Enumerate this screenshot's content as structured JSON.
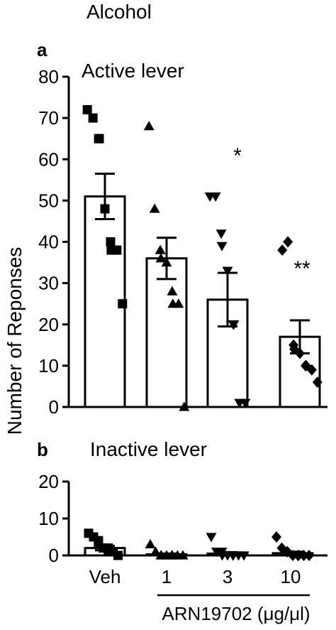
{
  "figure": {
    "heading": "Alcohol",
    "group_label": "ARN19702 (μg/μl)",
    "shared_ylabel": "Number of Reponses"
  },
  "chart_data": [
    {
      "type": "bar",
      "panel_letter": "a",
      "title": "Active lever",
      "ylabel": "Number of Reponses",
      "ylim": [
        0,
        80
      ],
      "yticks": [
        0,
        10,
        20,
        30,
        40,
        50,
        60,
        70,
        80
      ],
      "categories": [
        "Veh",
        "1",
        "3",
        "10"
      ],
      "show_category_labels": false,
      "values": [
        51,
        36,
        26,
        17
      ],
      "sem": [
        5.5,
        5,
        6.5,
        4
      ],
      "significance": [
        "",
        "",
        "*",
        "**"
      ],
      "points": [
        [
          72,
          70,
          65,
          65,
          48,
          40,
          38,
          38,
          25
        ],
        [
          68,
          48,
          38,
          36,
          35,
          28,
          25,
          25,
          0
        ],
        [
          51,
          51,
          42,
          39,
          33,
          20,
          20,
          1,
          1
        ],
        [
          38,
          40,
          15,
          14,
          13,
          10,
          10,
          9,
          6
        ]
      ],
      "markers": [
        "square",
        "triangle-up",
        "triangle-down",
        "diamond"
      ],
      "bar_fill": "#ffffff",
      "bar_stroke": "#000000"
    },
    {
      "type": "bar",
      "panel_letter": "b",
      "title": "Inactive lever",
      "ylim": [
        0,
        20
      ],
      "yticks": [
        0,
        10,
        20
      ],
      "categories": [
        "Veh",
        "1",
        "3",
        "10"
      ],
      "show_category_labels": true,
      "values": [
        2,
        0.3,
        0.5,
        0.6
      ],
      "sem": [
        0.6,
        0.2,
        0.4,
        0.4
      ],
      "points": [
        [
          6,
          5,
          4,
          3,
          2,
          2,
          1,
          1,
          0,
          0
        ],
        [
          3,
          1,
          0,
          0,
          0,
          0,
          0,
          0,
          0
        ],
        [
          5,
          1,
          1,
          0,
          0,
          0,
          0,
          0,
          0
        ],
        [
          5,
          2,
          1,
          1,
          0,
          0,
          0,
          0,
          0
        ]
      ],
      "markers": [
        "square",
        "triangle-up",
        "triangle-down",
        "diamond"
      ],
      "bar_fill": "#ffffff",
      "bar_stroke": "#000000"
    }
  ]
}
